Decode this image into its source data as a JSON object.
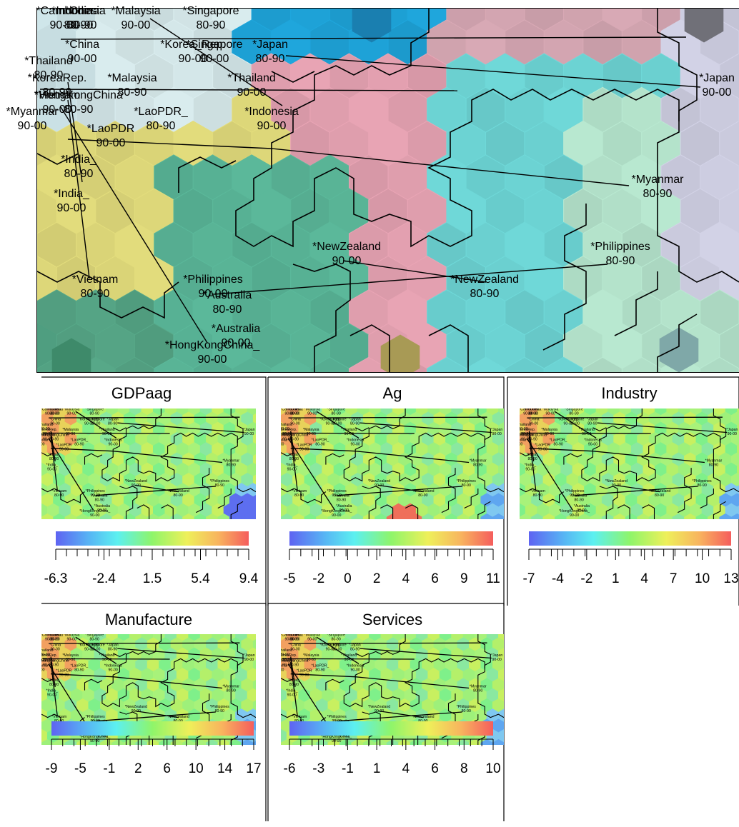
{
  "main_map": {
    "labels": [
      {
        "name": "*Cambodia",
        "line2": "90-00"
      },
      {
        "name": "*China",
        "line2": "80-90"
      },
      {
        "name": "*Indonesia",
        "line2": "80-90"
      },
      {
        "name": "*Malaysia",
        "line2": "90-00"
      },
      {
        "name": "*Singapore",
        "line2": "80-90"
      },
      {
        "name": "*China",
        "line2": "90-00"
      },
      {
        "name": "*Korea_Rep.",
        "line2": "90-00"
      },
      {
        "name": "*Singapore",
        "line2": "90-00"
      },
      {
        "name": "*Japan",
        "line2": "80-90"
      },
      {
        "name": "*Thailand",
        "line2": "80-90"
      },
      {
        "name": "*KoreaRep.",
        "line2": "80-90"
      },
      {
        "name": "*Malaysia",
        "line2": "80-90"
      },
      {
        "name": "*Thailand",
        "line2": "90-00"
      },
      {
        "name": "*HongKongChina",
        "line2": "80-90"
      },
      {
        "name": "*Vietnam",
        "line2": "90-00"
      },
      {
        "name": "*Indonesia",
        "line2": "90-00"
      },
      {
        "name": "*Myanmar",
        "line2": "90-00"
      },
      {
        "name": "*LaoPDR_",
        "line2": "80-90"
      },
      {
        "name": "*LaoPDR",
        "line2": "90-00"
      },
      {
        "name": "*India_",
        "line2": "80-90"
      },
      {
        "name": "*India_",
        "line2": "90-00"
      },
      {
        "name": "*Vietnam",
        "line2": "80-90"
      },
      {
        "name": "*Philippines",
        "line2": "90-00"
      },
      {
        "name": "*Australia",
        "line2": "80-90"
      },
      {
        "name": "*Australia",
        "line2": "90-00"
      },
      {
        "name": "*HongKongChina_",
        "line2": "90-00"
      },
      {
        "name": "*NewZealand",
        "line2": "90-00"
      },
      {
        "name": "*NewZealand",
        "line2": "80-90"
      },
      {
        "name": "*Philippines",
        "line2": "80-90"
      },
      {
        "name": "*Myanmar",
        "line2": "80-90"
      },
      {
        "name": "*Japan",
        "line2": "90-00"
      }
    ]
  },
  "chart_data": [
    {
      "type": "heatmap",
      "title": "GDPaag",
      "colorbar_ticks": [
        "-6.3",
        "-2.4",
        "1.5",
        "5.4",
        "9.4"
      ]
    },
    {
      "type": "heatmap",
      "title": "Ag",
      "colorbar_ticks": [
        "-5",
        "-2",
        "0",
        "2",
        "4",
        "6",
        "9",
        "11"
      ]
    },
    {
      "type": "heatmap",
      "title": "Industry",
      "colorbar_ticks": [
        "-7",
        "-4",
        "-2",
        "1",
        "4",
        "7",
        "10",
        "13"
      ]
    },
    {
      "type": "heatmap",
      "title": "Manufacture",
      "colorbar_ticks": [
        "-9",
        "-5",
        "-1",
        "2",
        "6",
        "10",
        "14",
        "17"
      ]
    },
    {
      "type": "heatmap",
      "title": "Services",
      "colorbar_ticks": [
        "-6",
        "-3",
        "-1",
        "1",
        "4",
        "6",
        "8",
        "10"
      ]
    }
  ]
}
